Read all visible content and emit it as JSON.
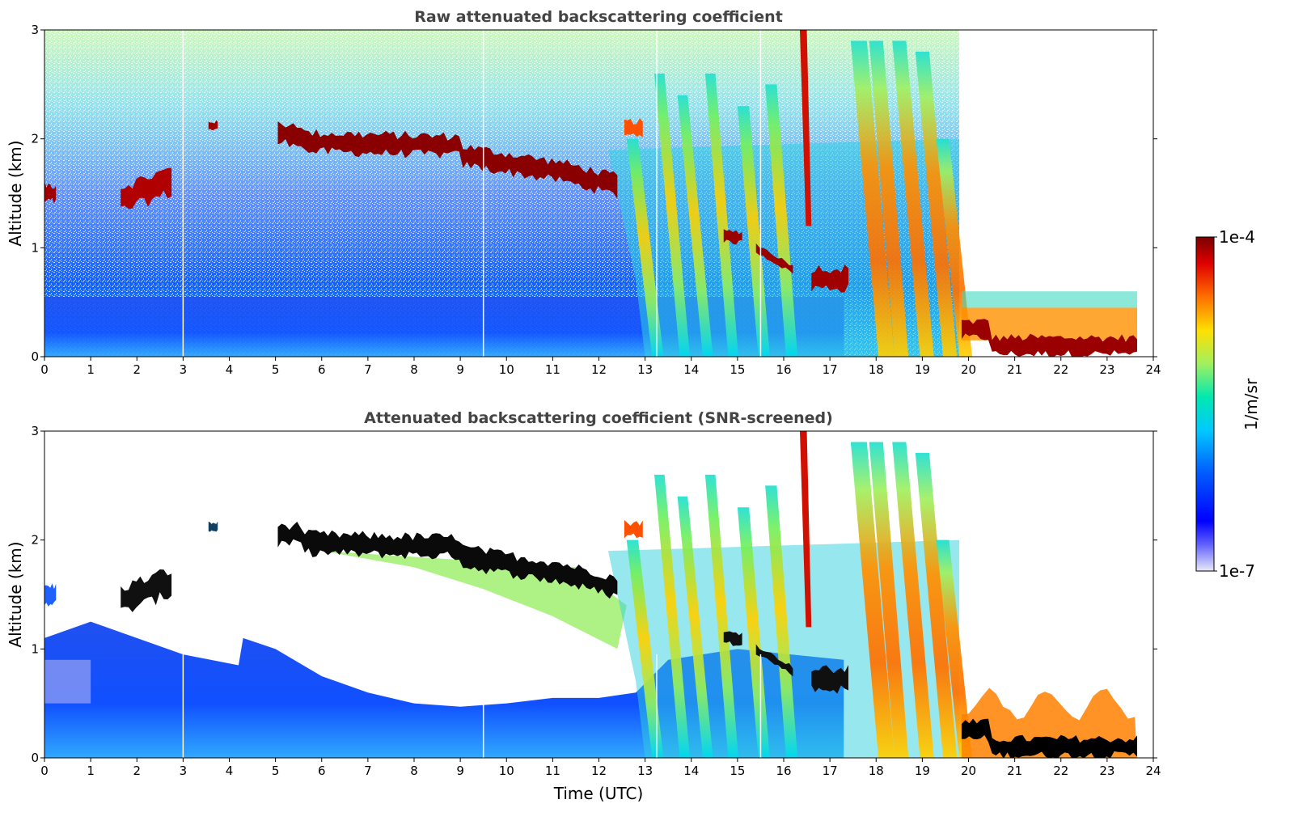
{
  "chart_data": [
    {
      "type": "heatmap",
      "title": "Raw attenuated backscattering coefficient",
      "xlabel": "",
      "ylabel": "Altitude (km)",
      "xlim": [
        0,
        24
      ],
      "ylim": [
        0,
        3
      ],
      "xticks": [
        "0",
        "1",
        "2",
        "3",
        "4",
        "5",
        "6",
        "7",
        "8",
        "9",
        "10",
        "11",
        "12",
        "13",
        "14",
        "15",
        "16",
        "17",
        "18",
        "19",
        "20",
        "21",
        "22",
        "23",
        "24"
      ],
      "yticks": [
        "0",
        "1",
        "2",
        "3"
      ],
      "data_end_hour": 23.65,
      "gap_hours": [
        3.0,
        9.5,
        13.25,
        15.5
      ],
      "cloud_features": [
        {
          "name": "cloud layer",
          "x_start": 0.0,
          "x_end": 0.25,
          "altitude_km": 1.5
        },
        {
          "name": "cloud layer",
          "x_start": 1.65,
          "x_end": 2.75,
          "altitude_km": 1.55
        },
        {
          "name": "cloud layer",
          "x_start": 3.55,
          "x_end": 3.75,
          "altitude_km": 2.12
        },
        {
          "name": "cloud layer",
          "x_start": 5.05,
          "x_end": 12.4,
          "altitude_km": 1.95
        },
        {
          "name": "cloud layer",
          "x_start": 14.7,
          "x_end": 15.1,
          "altitude_km": 1.1
        },
        {
          "name": "cloud layer",
          "x_start": 15.4,
          "x_end": 16.2,
          "altitude_km": 0.9
        },
        {
          "name": "cloud layer",
          "x_start": 16.6,
          "x_end": 17.4,
          "altitude_km": 0.72
        },
        {
          "name": "boundary layer",
          "x_start": 19.85,
          "x_end": 23.65,
          "altitude_km": 0.15
        }
      ]
    },
    {
      "type": "heatmap",
      "title": "Attenuated backscattering coefficient (SNR-screened)",
      "xlabel": "Time (UTC)",
      "ylabel": "Altitude (km)",
      "xlim": [
        0,
        24
      ],
      "ylim": [
        0,
        3
      ],
      "xticks": [
        "0",
        "1",
        "2",
        "3",
        "4",
        "5",
        "6",
        "7",
        "8",
        "9",
        "10",
        "11",
        "12",
        "13",
        "14",
        "15",
        "16",
        "17",
        "18",
        "19",
        "20",
        "21",
        "22",
        "23",
        "24"
      ],
      "yticks": [
        "0",
        "1",
        "2",
        "3"
      ],
      "data_end_hour": 23.65,
      "gap_hours": [
        3.0,
        9.5,
        13.25,
        15.5
      ]
    }
  ],
  "colorbar": {
    "label": "1/m/sr",
    "max_label": "1e-4",
    "min_label": "1e-7",
    "scale": "log",
    "colors": [
      "#e8e8f8",
      "#0000ff",
      "#00a0ff",
      "#00e8d0",
      "#a0f060",
      "#ffe000",
      "#ff7000",
      "#e00000",
      "#7a0000"
    ]
  }
}
